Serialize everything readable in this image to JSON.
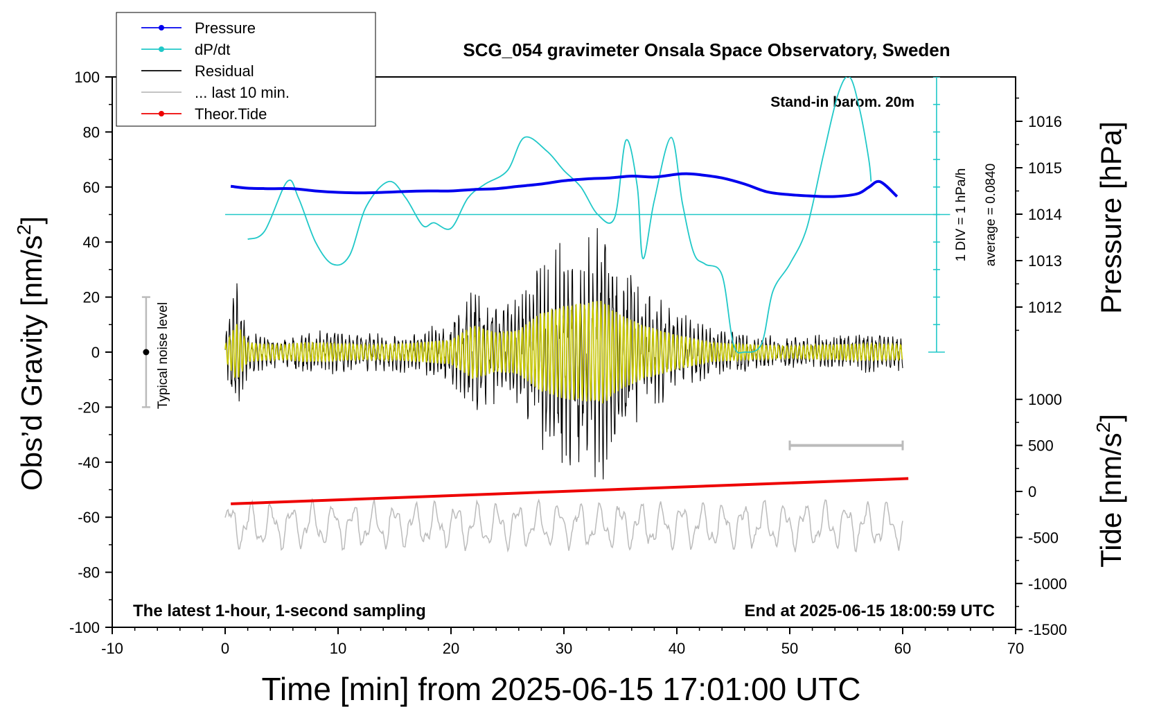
{
  "chart_data": {
    "type": "line",
    "title": "SCG_054 gravimeter Onsala Space Observatory, Sweden",
    "xlabel": "Time [min] from 2025-06-15 17:01:00 UTC",
    "ylabel_left_prefix": "Obs’d Gravity [nm/s",
    "ylabel_left_sup": "2",
    "ylabel_left_suffix": "]",
    "ylabel_right_top": "Pressure [hPa]",
    "ylabel_right_bottom_prefix": "Tide [nm/s",
    "ylabel_right_bottom_sup": "2",
    "ylabel_right_bottom_suffix": "]",
    "xlim": [
      -10,
      70
    ],
    "ylim": [
      -100,
      100
    ],
    "pressure_lim": [
      1011,
      1017
    ],
    "tide_lim": [
      -1500,
      1000
    ],
    "x_ticks": [
      "-10",
      "0",
      "10",
      "20",
      "30",
      "40",
      "50",
      "60",
      "70"
    ],
    "x_tick_values": [
      -10,
      0,
      10,
      20,
      30,
      40,
      50,
      60,
      70
    ],
    "y_ticks": [
      "100",
      "80",
      "60",
      "40",
      "20",
      "0",
      "-20",
      "-40",
      "-60",
      "-80",
      "-100"
    ],
    "y_tick_values": [
      100,
      80,
      60,
      40,
      20,
      0,
      -20,
      -40,
      -60,
      -80,
      -100
    ],
    "pressure_ticks": [
      "1016",
      "1015",
      "1014",
      "1013",
      "1012"
    ],
    "pressure_tick_values": [
      1016,
      1015,
      1014,
      1013,
      1012
    ],
    "tide_ticks": [
      "1000",
      "500",
      "0",
      "-500",
      "-1000",
      "-1500"
    ],
    "tide_tick_values": [
      1000,
      500,
      0,
      -500,
      -1000,
      -1500
    ],
    "legend": [
      {
        "label": "Pressure",
        "color": "#0000ee",
        "marker": true
      },
      {
        "label": "dP/dt",
        "color": "#20c8c8",
        "marker": true
      },
      {
        "label": "Residual",
        "color": "#000000",
        "marker": false
      },
      {
        "label": "... last 10 min.",
        "color": "#bbbbbb",
        "marker": false
      },
      {
        "label": "Theor.Tide",
        "color": "#ee0000",
        "marker": true
      }
    ],
    "annotations": {
      "stand_in": "Stand-in barom. 20m",
      "div_label": "1 DIV = 1 hPa/h",
      "average_label": "average = 0.0840",
      "noise_label": "Typical noise level",
      "footer_left": "The latest 1-hour, 1-second sampling",
      "footer_right": "End at 2025-06-15 18:00:59 UTC"
    },
    "noise_bar": {
      "x": -7,
      "y_low": -20,
      "y_high": 20
    },
    "last10_bar": {
      "x_start": 50,
      "x_end": 60,
      "tide_value": 500
    },
    "dpdt_axis": {
      "x": 63,
      "baseline_gravity": 0,
      "top_gravity": 100,
      "average_line_gravity": 50,
      "divisions": 10
    },
    "series": [
      {
        "name": "Pressure",
        "axis": "pressure",
        "color": "#0000ee",
        "x": [
          0.5,
          2,
          4,
          6,
          8,
          10,
          12,
          14,
          16,
          18,
          20,
          22,
          24,
          26,
          28,
          30,
          32,
          34,
          36,
          38,
          40,
          41,
          42,
          44,
          46,
          48,
          50,
          52,
          54,
          56,
          57,
          58,
          59.5
        ],
        "y": [
          1014.6,
          1014.56,
          1014.55,
          1014.55,
          1014.5,
          1014.47,
          1014.46,
          1014.47,
          1014.49,
          1014.5,
          1014.5,
          1014.53,
          1014.55,
          1014.6,
          1014.65,
          1014.72,
          1014.76,
          1014.78,
          1014.82,
          1014.8,
          1014.86,
          1014.87,
          1014.85,
          1014.78,
          1014.65,
          1014.48,
          1014.42,
          1014.39,
          1014.38,
          1014.44,
          1014.58,
          1014.7,
          1014.38
        ]
      },
      {
        "name": "dP/dt",
        "axis": "gravity",
        "color": "#20c8c8",
        "x": [
          2,
          3.5,
          5.5,
          6.5,
          8,
          9.5,
          11,
          12.5,
          14.5,
          16,
          17.5,
          18.5,
          20,
          21.5,
          23,
          25,
          26.5,
          28.5,
          30,
          31.5,
          33,
          34.5,
          35.5,
          36.5,
          37,
          38,
          39.5,
          40.5,
          41.5,
          42.5,
          44,
          45,
          46,
          47.5,
          48.5,
          50,
          51.5,
          53,
          54.3,
          55.3,
          56.2,
          57,
          57.2
        ],
        "y": [
          41,
          44,
          62,
          56,
          40,
          32,
          35,
          53,
          62,
          56,
          46,
          47,
          45,
          56,
          61,
          66,
          78,
          73,
          66,
          60,
          50,
          49,
          77,
          60,
          34,
          55,
          78,
          54,
          36,
          32,
          28,
          3,
          0,
          3,
          22,
          32,
          45,
          72,
          94,
          100,
          88,
          70,
          62
        ]
      },
      {
        "name": "Residual",
        "axis": "gravity",
        "color": "#000000",
        "envelope_x": [
          0,
          1,
          2,
          3,
          5,
          7,
          10,
          13,
          16,
          20,
          22,
          24,
          26,
          28,
          30,
          32,
          33.5,
          35,
          37,
          40,
          43,
          47,
          50,
          53,
          57,
          60
        ],
        "envelope_amplitude": [
          6,
          24,
          8,
          7,
          6,
          8,
          7,
          6,
          7,
          10,
          22,
          16,
          18,
          32,
          38,
          40,
          42,
          30,
          22,
          14,
          8,
          6,
          5,
          6,
          7,
          6
        ]
      },
      {
        "name": "... last 10 min.",
        "axis": "gravity",
        "color": "#bbbbbb",
        "x_start": 0,
        "x_end": 60,
        "center_gravity": -63,
        "amplitude": 8
      },
      {
        "name": "Theor.Tide",
        "axis": "tide",
        "color": "#ee0000",
        "x": [
          0.5,
          60.5
        ],
        "y": [
          -135,
          140
        ]
      }
    ]
  }
}
